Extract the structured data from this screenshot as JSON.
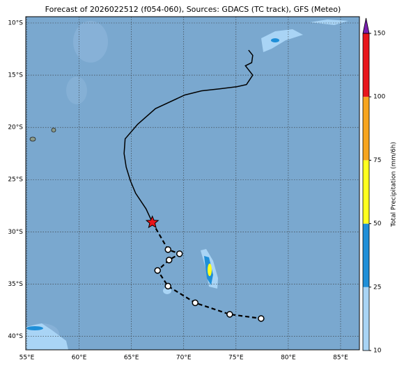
{
  "chart_data": {
    "type": "map",
    "title": "Forecast of 2026022512 (f054-060), Sources: GDACS (TC track), GFS (Meteo)",
    "xlim": [
      54.9,
      86.8
    ],
    "ylim": [
      -41.3,
      -9.4
    ],
    "grid": true,
    "xticks": [
      {
        "value": 55,
        "label": "55°E"
      },
      {
        "value": 60,
        "label": "60°E"
      },
      {
        "value": 65,
        "label": "65°E"
      },
      {
        "value": 70,
        "label": "70°E"
      },
      {
        "value": 75,
        "label": "75°E"
      },
      {
        "value": 80,
        "label": "80°E"
      },
      {
        "value": 85,
        "label": "85°E"
      }
    ],
    "yticks": [
      {
        "value": -10,
        "label": "10°S"
      },
      {
        "value": -15,
        "label": "15°S"
      },
      {
        "value": -20,
        "label": "20°S"
      },
      {
        "value": -25,
        "label": "25°S"
      },
      {
        "value": -30,
        "label": "30°S"
      },
      {
        "value": -35,
        "label": "35°S"
      },
      {
        "value": -40,
        "label": "40°S"
      }
    ],
    "series": [
      {
        "color": "#000000",
        "x": [
          76.2,
          76.6,
          76.5,
          75.9,
          76.6,
          76.0,
          75.1,
          73.5,
          71.7,
          70.1,
          67.3,
          65.6,
          64.4,
          64.3,
          64.5,
          64.9,
          65.4,
          66.4,
          67.0
        ],
        "values": [
          -12.6,
          -13.1,
          -13.8,
          -14.1,
          -15.0,
          -15.9,
          -16.1,
          -16.3,
          -16.5,
          -16.9,
          -18.2,
          -19.7,
          -21.1,
          -22.5,
          -23.8,
          -25.1,
          -26.3,
          -27.8,
          -29.1
        ]
      },
      {
        "color": "#000000",
        "x": [
          67.0,
          68.5,
          69.6,
          68.6,
          67.5,
          68.5,
          71.1,
          74.4,
          77.4
        ],
        "values": [
          -29.1,
          -31.7,
          -32.1,
          -32.7,
          -33.7,
          -35.2,
          -36.8,
          -37.9,
          -38.3
        ]
      }
    ],
    "colorbar": {
      "label": "Total Precipitation (mm/6h)",
      "ticks": [
        10,
        25,
        50,
        75,
        100,
        150
      ],
      "colors": [
        "#a9d4f5",
        "#1f8fd8",
        "#ffff1f",
        "#f7a51f",
        "#e8151b"
      ],
      "extend_color": "#7a1fb0"
    }
  }
}
